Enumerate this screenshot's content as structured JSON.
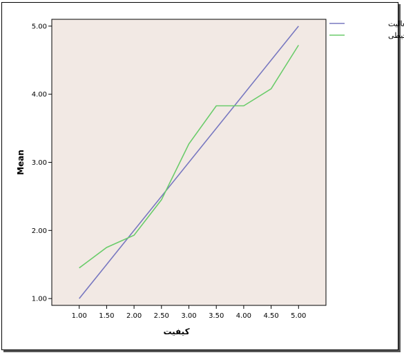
{
  "chart_data": {
    "type": "line",
    "title": "",
    "xlabel": "کیفیت",
    "ylabel": "Mean",
    "x": [
      1.0,
      1.5,
      2.0,
      2.5,
      3.0,
      3.5,
      4.0,
      4.5,
      5.0
    ],
    "x_tick_labels": [
      "1.00",
      "1.50",
      "2.00",
      "2.50",
      "3.00",
      "3.50",
      "4.00",
      "4.50",
      "5.00"
    ],
    "y_ticks": [
      1.0,
      2.0,
      3.0,
      4.0,
      5.0
    ],
    "y_tick_labels": [
      "1.00",
      "2.00",
      "3.00",
      "4.00",
      "5.00"
    ],
    "xlim": [
      0.5,
      5.5
    ],
    "ylim": [
      0.9,
      5.1
    ],
    "grid": false,
    "legend_position": "top-right",
    "series": [
      {
        "name": "کاربری و فعالیت",
        "color": "#7878c0",
        "values": [
          1.0,
          1.5,
          2.0,
          2.5,
          3.0,
          3.5,
          4.0,
          4.5,
          5.0
        ]
      },
      {
        "name": "کیفیت محیطی",
        "color": "#6acc6a",
        "values": [
          1.45,
          1.75,
          1.93,
          2.45,
          3.27,
          3.83,
          3.83,
          4.08,
          4.72
        ]
      }
    ],
    "plot_background": "#f2e9e4"
  }
}
